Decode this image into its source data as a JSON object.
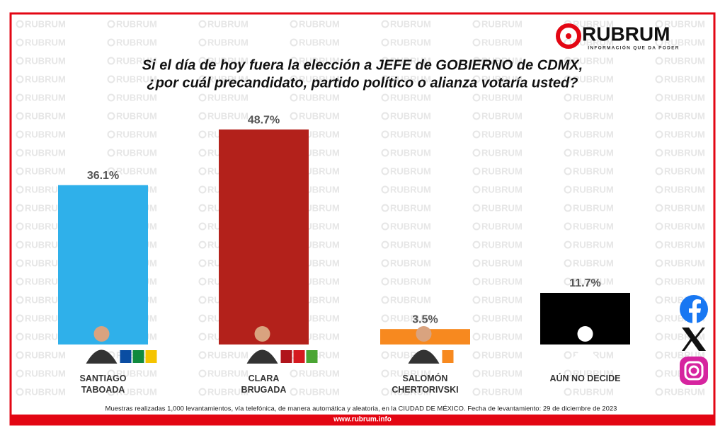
{
  "chart_data": {
    "type": "bar",
    "title": "Si el día de hoy fuera la elección a JEFE de GOBIERNO de CDMX,",
    "subtitle": "¿por cuál precandidato, partido político o alianza votaría usted?",
    "categories": [
      "SANTIAGO\nTABOADA",
      "CLARA\nBRUGADA",
      "SALOMÓN\nCHERTORIVSKI",
      "AÚN NO DECIDE"
    ],
    "values": [
      36.1,
      48.7,
      3.5,
      11.7
    ],
    "value_labels": [
      "36.1%",
      "48.7%",
      "3.5%",
      "11.7%"
    ],
    "colors": [
      "#2fb0ea",
      "#b3211b",
      "#f7891f",
      "#000000"
    ],
    "logo": "RUBRUM",
    "tagline": "INFORMACIÓN QUE DA PODER",
    "watermark": "RUBRUM",
    "footnote": "Muestras realizadas 1,000 levantamientos, vía telefónica, de manera automática y aleatoria, en la CIUDAD DE MÉXICO. Fecha de levantamiento: 29 de diciembre de 2023",
    "website": "www.rubrum.info"
  }
}
